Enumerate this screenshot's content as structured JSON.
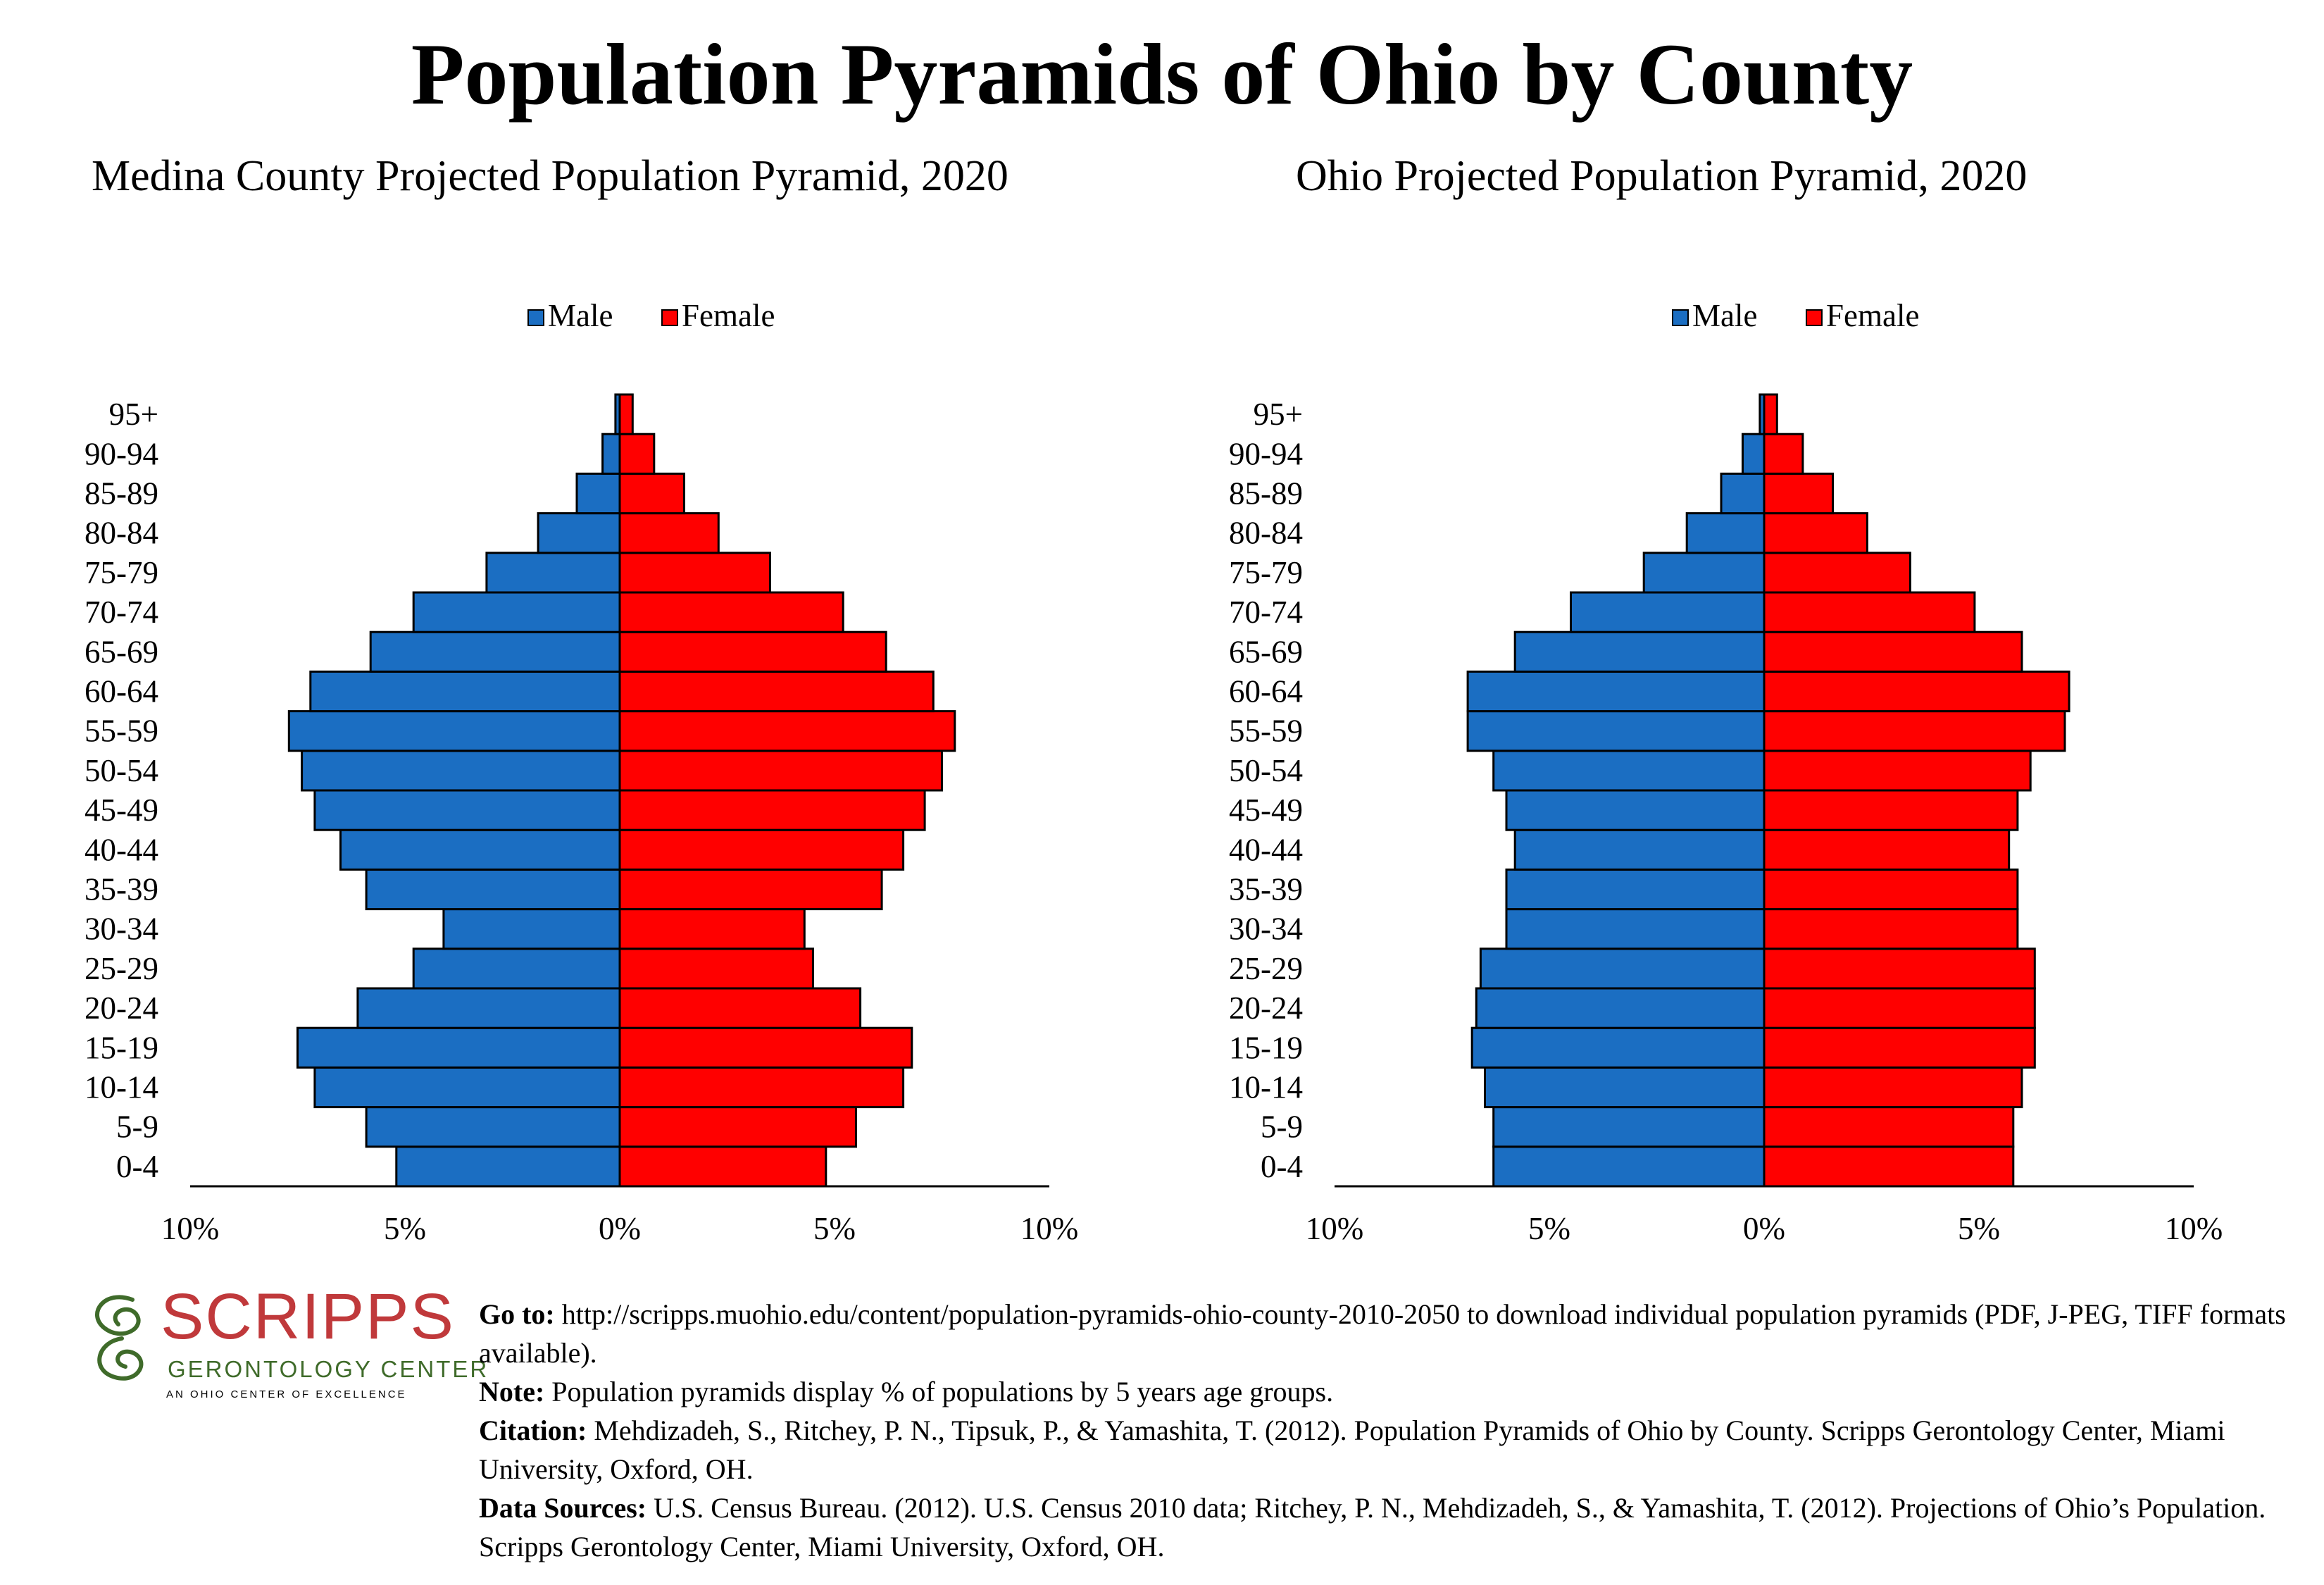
{
  "title": "Population Pyramids of Ohio by County",
  "legend": {
    "male": "Male",
    "female": "Female"
  },
  "colors": {
    "male": "#1b6ec2",
    "female": "#ff0000"
  },
  "chart_data": [
    {
      "type": "bar",
      "title": "Medina County Projected Population Pyramid, 2020",
      "orientation": "horizontal-pyramid",
      "categories": [
        "0-4",
        "5-9",
        "10-14",
        "15-19",
        "20-24",
        "25-29",
        "30-34",
        "35-39",
        "40-44",
        "45-49",
        "50-54",
        "55-59",
        "60-64",
        "65-69",
        "70-74",
        "75-79",
        "80-84",
        "85-89",
        "90-94",
        "95+"
      ],
      "series": [
        {
          "name": "Male",
          "values": [
            5.2,
            5.9,
            7.1,
            7.5,
            6.1,
            4.8,
            4.1,
            5.9,
            6.5,
            7.1,
            7.4,
            7.7,
            7.2,
            5.8,
            4.8,
            3.1,
            1.9,
            1.0,
            0.4,
            0.1
          ]
        },
        {
          "name": "Female",
          "values": [
            4.8,
            5.5,
            6.6,
            6.8,
            5.6,
            4.5,
            4.3,
            6.1,
            6.6,
            7.1,
            7.5,
            7.8,
            7.3,
            6.2,
            5.2,
            3.5,
            2.3,
            1.5,
            0.8,
            0.3
          ]
        }
      ],
      "xlim": [
        -10,
        10
      ],
      "xticks": [
        "10%",
        "5%",
        "0%",
        "5%",
        "10%"
      ],
      "legend_position": "top-center"
    },
    {
      "type": "bar",
      "title": "Ohio Projected Population Pyramid, 2020",
      "orientation": "horizontal-pyramid",
      "categories": [
        "0-4",
        "5-9",
        "10-14",
        "15-19",
        "20-24",
        "25-29",
        "30-34",
        "35-39",
        "40-44",
        "45-49",
        "50-54",
        "55-59",
        "60-64",
        "65-69",
        "70-74",
        "75-79",
        "80-84",
        "85-89",
        "90-94",
        "95+"
      ],
      "series": [
        {
          "name": "Male",
          "values": [
            6.3,
            6.3,
            6.5,
            6.8,
            6.7,
            6.6,
            6.0,
            6.0,
            5.8,
            6.0,
            6.3,
            6.9,
            6.9,
            5.8,
            4.5,
            2.8,
            1.8,
            1.0,
            0.5,
            0.1
          ]
        },
        {
          "name": "Female",
          "values": [
            5.8,
            5.8,
            6.0,
            6.3,
            6.3,
            6.3,
            5.9,
            5.9,
            5.7,
            5.9,
            6.2,
            7.0,
            7.1,
            6.0,
            4.9,
            3.4,
            2.4,
            1.6,
            0.9,
            0.3
          ]
        }
      ],
      "xlim": [
        -10,
        10
      ],
      "xticks": [
        "10%",
        "5%",
        "0%",
        "5%",
        "10%"
      ],
      "legend_position": "top-center"
    }
  ],
  "logo": {
    "name": "SCRIPPS",
    "subtitle": "GERONTOLOGY CENTER",
    "tagline": "AN OHIO CENTER OF EXCELLENCE"
  },
  "notes": {
    "goto_label": "Go to:",
    "goto_text": " http://scripps.muohio.edu/content/population-pyramids-ohio-county-2010-2050 to download individual population pyramids (PDF, J-PEG, TIFF formats available).",
    "note_label": "Note:",
    "note_text": " Population pyramids display % of populations by 5 years age groups.",
    "citation_label": "Citation:",
    "citation_text": " Mehdizadeh, S., Ritchey, P. N., Tipsuk, P., & Yamashita, T. (2012). Population Pyramids of Ohio by County. Scripps Gerontology Center, Miami University, Oxford, OH.",
    "sources_label": "Data Sources:",
    "sources_text": " U.S. Census Bureau. (2012). U.S. Census 2010 data; Ritchey, P. N., Mehdizadeh, S., & Yamashita, T. (2012). Projections of Ohio’s Population. Scripps Gerontology Center, Miami University, Oxford, OH."
  }
}
